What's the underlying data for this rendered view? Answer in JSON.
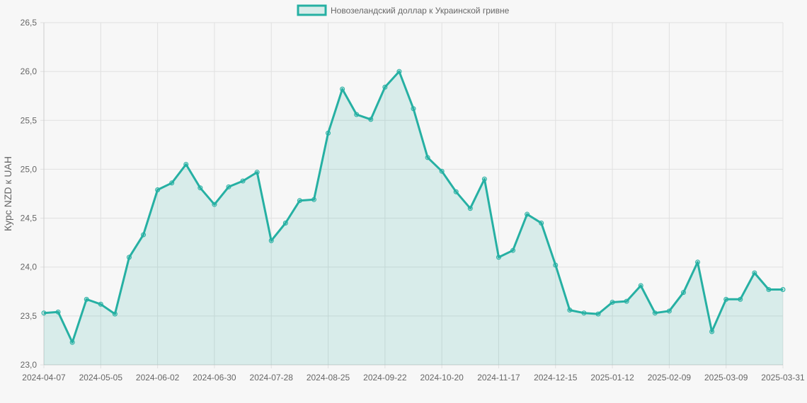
{
  "chart_data": {
    "type": "area",
    "series": [
      {
        "name": "Новозеландский доллар к Украинской гривне",
        "values": [
          23.53,
          23.54,
          23.23,
          23.67,
          23.62,
          23.52,
          24.1,
          24.33,
          24.79,
          24.86,
          25.05,
          24.81,
          24.64,
          24.82,
          24.88,
          24.97,
          24.27,
          24.45,
          24.68,
          24.69,
          25.37,
          25.82,
          25.56,
          25.51,
          25.84,
          26.0,
          25.62,
          25.12,
          24.98,
          24.77,
          24.6,
          24.9,
          24.1,
          24.17,
          24.54,
          24.45,
          24.02,
          23.56,
          23.53,
          23.52,
          23.64,
          23.65,
          23.81,
          23.53,
          23.55,
          23.74,
          24.05,
          23.34,
          23.67,
          23.67,
          23.94,
          23.77,
          23.77
        ]
      }
    ],
    "x_tick_labels": [
      "2024-04-07",
      "2024-05-05",
      "2024-06-02",
      "2024-06-30",
      "2024-07-28",
      "2024-08-25",
      "2024-09-22",
      "2024-10-20",
      "2024-11-17",
      "2024-12-15",
      "2025-01-12",
      "2025-02-09",
      "2025-03-09",
      "2025-03-31"
    ],
    "x_tick_indices": [
      0,
      4,
      8,
      12,
      16,
      20,
      24,
      28,
      32,
      36,
      40,
      44,
      48,
      52
    ],
    "y_tick_labels": [
      "23,0",
      "23,5",
      "24,0",
      "24,5",
      "25,0",
      "25,5",
      "26,0",
      "26,5"
    ],
    "ylim": [
      23.0,
      26.5
    ],
    "ylabel": "Курс NZD к UAH",
    "grid": true,
    "legend_position": "top",
    "colors": {
      "line": "#26b0a3",
      "fill": "rgba(38,176,163,0.15)",
      "grid": "#e0e0e0",
      "axis": "#cccccc"
    }
  }
}
